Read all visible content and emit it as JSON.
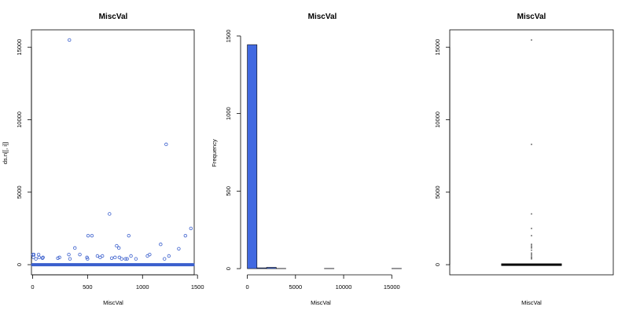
{
  "chart_data": [
    {
      "type": "scatter",
      "title": "MiscVal",
      "xlabel": "MiscVal",
      "ylabel": "ds.n[[, i]]",
      "xlim": [
        -10,
        1470
      ],
      "ylim": [
        -700,
        16200
      ],
      "xticks": [
        0,
        500,
        1000,
        1500
      ],
      "yticks": [
        0,
        5000,
        10000,
        15000
      ],
      "grid": false,
      "colors": {
        "points": "#3a5fcd"
      },
      "zero_band": {
        "x_from": 1,
        "x_to": 1460,
        "y": 0
      },
      "points": [
        {
          "x": 4,
          "y": 700
        },
        {
          "x": 8,
          "y": 500
        },
        {
          "x": 12,
          "y": 700
        },
        {
          "x": 30,
          "y": 400
        },
        {
          "x": 55,
          "y": 700
        },
        {
          "x": 60,
          "y": 500
        },
        {
          "x": 90,
          "y": 450
        },
        {
          "x": 95,
          "y": 500
        },
        {
          "x": 230,
          "y": 450
        },
        {
          "x": 245,
          "y": 500
        },
        {
          "x": 335,
          "y": 15500
        },
        {
          "x": 330,
          "y": 700
        },
        {
          "x": 340,
          "y": 400
        },
        {
          "x": 385,
          "y": 1150
        },
        {
          "x": 430,
          "y": 700
        },
        {
          "x": 495,
          "y": 500
        },
        {
          "x": 500,
          "y": 400
        },
        {
          "x": 505,
          "y": 2000
        },
        {
          "x": 540,
          "y": 2000
        },
        {
          "x": 590,
          "y": 600
        },
        {
          "x": 615,
          "y": 500
        },
        {
          "x": 635,
          "y": 600
        },
        {
          "x": 700,
          "y": 3500
        },
        {
          "x": 720,
          "y": 450
        },
        {
          "x": 750,
          "y": 500
        },
        {
          "x": 765,
          "y": 1300
        },
        {
          "x": 785,
          "y": 1150
        },
        {
          "x": 790,
          "y": 500
        },
        {
          "x": 810,
          "y": 400
        },
        {
          "x": 845,
          "y": 400
        },
        {
          "x": 860,
          "y": 400
        },
        {
          "x": 875,
          "y": 2000
        },
        {
          "x": 895,
          "y": 600
        },
        {
          "x": 940,
          "y": 400
        },
        {
          "x": 1045,
          "y": 600
        },
        {
          "x": 1065,
          "y": 700
        },
        {
          "x": 1165,
          "y": 1400
        },
        {
          "x": 1200,
          "y": 400
        },
        {
          "x": 1215,
          "y": 8300
        },
        {
          "x": 1240,
          "y": 600
        },
        {
          "x": 1330,
          "y": 1100
        },
        {
          "x": 1390,
          "y": 2000
        },
        {
          "x": 1440,
          "y": 2500
        }
      ]
    },
    {
      "type": "bar",
      "title": "MiscVal",
      "xlabel": "MiscVal",
      "ylabel": "Frequency",
      "xlim": [
        -700,
        16200
      ],
      "ylim": [
        -40,
        1540
      ],
      "xticks": [
        0,
        5000,
        10000,
        15000
      ],
      "yticks": [
        0,
        500,
        1000,
        1500
      ],
      "colors": {
        "bars": "#4169e1"
      },
      "bins": [
        {
          "from": 0,
          "to": 1000,
          "count": 1444
        },
        {
          "from": 1000,
          "to": 2000,
          "count": 5
        },
        {
          "from": 2000,
          "to": 3000,
          "count": 8
        },
        {
          "from": 3000,
          "to": 4000,
          "count": 1
        },
        {
          "from": 4000,
          "to": 5000,
          "count": 0
        },
        {
          "from": 5000,
          "to": 6000,
          "count": 0
        },
        {
          "from": 6000,
          "to": 7000,
          "count": 0
        },
        {
          "from": 7000,
          "to": 8000,
          "count": 0
        },
        {
          "from": 8000,
          "to": 9000,
          "count": 1
        },
        {
          "from": 9000,
          "to": 10000,
          "count": 0
        },
        {
          "from": 10000,
          "to": 11000,
          "count": 0
        },
        {
          "from": 11000,
          "to": 12000,
          "count": 0
        },
        {
          "from": 12000,
          "to": 13000,
          "count": 0
        },
        {
          "from": 13000,
          "to": 14000,
          "count": 0
        },
        {
          "from": 14000,
          "to": 15000,
          "count": 0
        },
        {
          "from": 15000,
          "to": 16000,
          "count": 1
        }
      ]
    },
    {
      "type": "box",
      "title": "MiscVal",
      "xlabel": "MiscVal",
      "ylabel": "",
      "ylim": [
        -700,
        16200
      ],
      "yticks": [
        0,
        5000,
        10000,
        15000
      ],
      "box": {
        "min": 0,
        "q1": 0,
        "median": 0,
        "q3": 0,
        "whisker_high": 0
      },
      "outliers": [
        400,
        450,
        500,
        600,
        700,
        800,
        1000,
        1150,
        1200,
        1300,
        1400,
        2000,
        2500,
        3500,
        8300,
        15500
      ]
    }
  ]
}
